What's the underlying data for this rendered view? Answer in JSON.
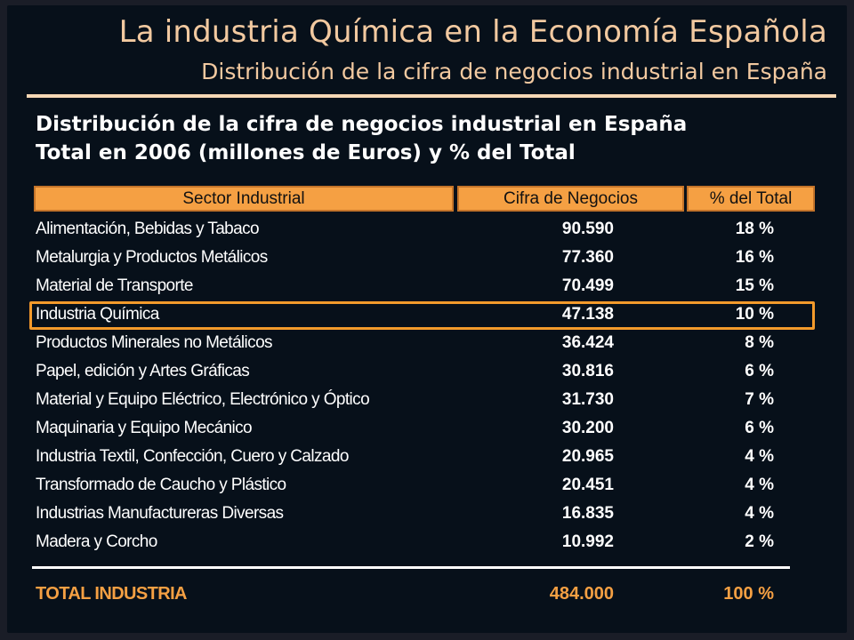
{
  "slide": {
    "title": "La industria Química en la Economía Española",
    "subtitle": "Distribución de la cifra de negocios industrial en España"
  },
  "table_heading": {
    "line1": "Distribución de la cifra de negocios industrial en España",
    "line2": "Total en 2006 (millones de Euros) y % del Total"
  },
  "columns": {
    "sector": "Sector Industrial",
    "cifra": "Cifra de Negocios",
    "pct": "% del Total"
  },
  "rows": [
    {
      "sector": "Alimentación, Bebidas y Tabaco",
      "cifra": "90.590",
      "pct": "18 %"
    },
    {
      "sector": "Metalurgia y Productos Metálicos",
      "cifra": "77.360",
      "pct": "16 %"
    },
    {
      "sector": "Material de Transporte",
      "cifra": "70.499",
      "pct": "15 %"
    },
    {
      "sector": "Industria Química",
      "cifra": "47.138",
      "pct": "10 %",
      "highlighted": true
    },
    {
      "sector": "Productos Minerales no Metálicos",
      "cifra": "36.424",
      "pct": "8 %"
    },
    {
      "sector": "Papel, edición y Artes Gráficas",
      "cifra": "30.816",
      "pct": "6 %"
    },
    {
      "sector": "Material y Equipo Eléctrico, Electrónico y Óptico",
      "cifra": "31.730",
      "pct": "7 %"
    },
    {
      "sector": "Maquinaria y Equipo Mecánico",
      "cifra": "30.200",
      "pct": "6 %"
    },
    {
      "sector": "Industria Textil, Confección, Cuero y Calzado",
      "cifra": "20.965",
      "pct": "4 %"
    },
    {
      "sector": "Transformado de Caucho y Plástico",
      "cifra": "20.451",
      "pct": "4 %"
    },
    {
      "sector": "Industrias Manufactureras Diversas",
      "cifra": "16.835",
      "pct": "4 %"
    },
    {
      "sector": "Madera y Corcho",
      "cifra": "10.992",
      "pct": "2 %"
    }
  ],
  "total": {
    "sector": "TOTAL INDUSTRIA",
    "cifra": "484.000",
    "pct": "100 %"
  },
  "colors": {
    "background": "#07101a",
    "title_text": "#f2c9a0",
    "header_fill": "#f5a043",
    "highlight_border": "#f39a2b",
    "total_text": "#f5a043"
  }
}
